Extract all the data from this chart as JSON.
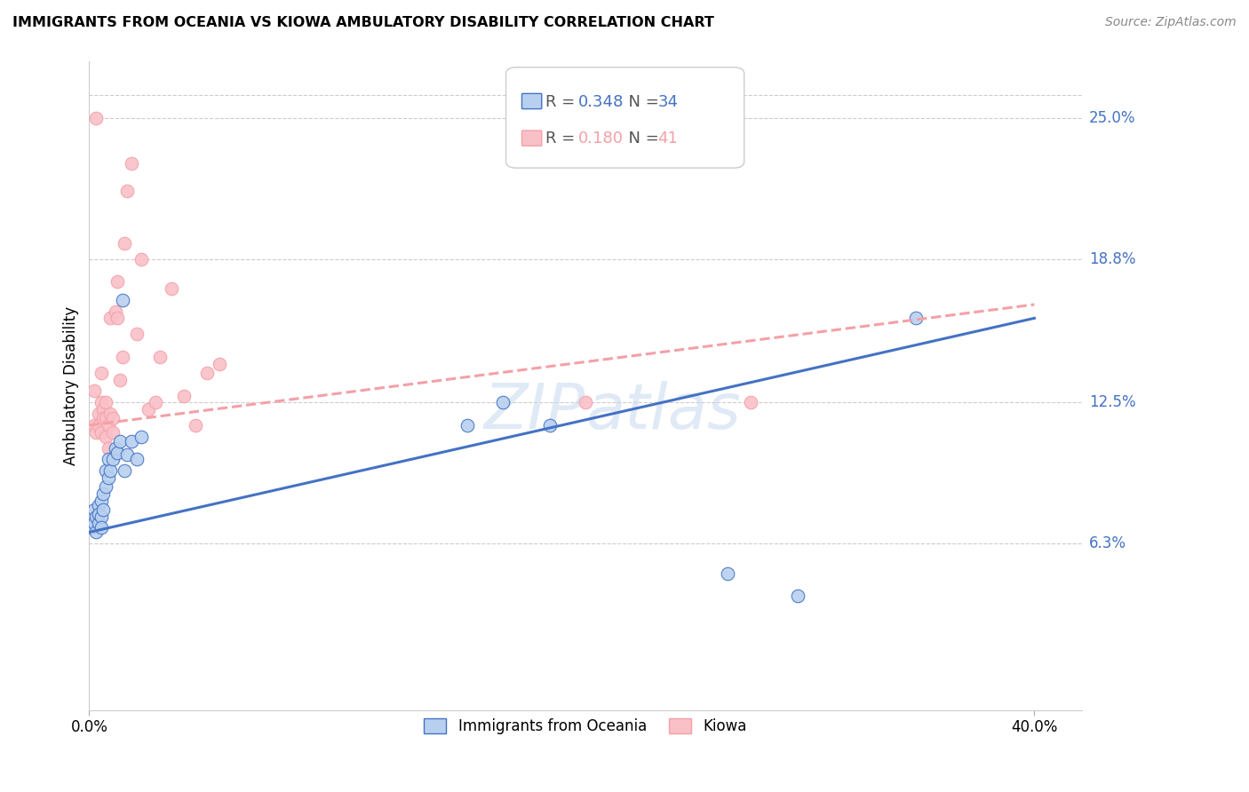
{
  "title": "IMMIGRANTS FROM OCEANIA VS KIOWA AMBULATORY DISABILITY CORRELATION CHART",
  "source": "Source: ZipAtlas.com",
  "ylabel": "Ambulatory Disability",
  "ytick_labels": [
    "6.3%",
    "12.5%",
    "18.8%",
    "25.0%"
  ],
  "ytick_values": [
    0.063,
    0.125,
    0.188,
    0.25
  ],
  "xlim": [
    0.0,
    0.42
  ],
  "ylim": [
    -0.01,
    0.275
  ],
  "plot_xlim": [
    0.0,
    0.4
  ],
  "legend_blue_r": "0.348",
  "legend_blue_n": "34",
  "legend_pink_r": "0.180",
  "legend_pink_n": "41",
  "blue_scatter_x": [
    0.001,
    0.002,
    0.002,
    0.003,
    0.003,
    0.004,
    0.004,
    0.004,
    0.005,
    0.005,
    0.005,
    0.006,
    0.006,
    0.007,
    0.007,
    0.008,
    0.008,
    0.009,
    0.01,
    0.011,
    0.012,
    0.013,
    0.014,
    0.015,
    0.016,
    0.018,
    0.02,
    0.022,
    0.16,
    0.175,
    0.195,
    0.27,
    0.3,
    0.35
  ],
  "blue_scatter_y": [
    0.07,
    0.072,
    0.078,
    0.075,
    0.068,
    0.072,
    0.08,
    0.076,
    0.075,
    0.082,
    0.07,
    0.078,
    0.085,
    0.088,
    0.095,
    0.092,
    0.1,
    0.095,
    0.1,
    0.105,
    0.103,
    0.108,
    0.17,
    0.095,
    0.102,
    0.108,
    0.1,
    0.11,
    0.115,
    0.125,
    0.115,
    0.05,
    0.04,
    0.162
  ],
  "pink_scatter_x": [
    0.001,
    0.002,
    0.002,
    0.003,
    0.003,
    0.004,
    0.004,
    0.005,
    0.005,
    0.005,
    0.006,
    0.006,
    0.007,
    0.007,
    0.007,
    0.008,
    0.008,
    0.009,
    0.009,
    0.01,
    0.01,
    0.011,
    0.012,
    0.012,
    0.013,
    0.014,
    0.015,
    0.016,
    0.018,
    0.02,
    0.022,
    0.025,
    0.028,
    0.03,
    0.035,
    0.04,
    0.045,
    0.05,
    0.055,
    0.21,
    0.28
  ],
  "pink_scatter_y": [
    0.072,
    0.115,
    0.13,
    0.112,
    0.25,
    0.115,
    0.12,
    0.125,
    0.138,
    0.112,
    0.122,
    0.118,
    0.11,
    0.118,
    0.125,
    0.105,
    0.115,
    0.12,
    0.162,
    0.112,
    0.118,
    0.165,
    0.162,
    0.178,
    0.135,
    0.145,
    0.195,
    0.218,
    0.23,
    0.155,
    0.188,
    0.122,
    0.125,
    0.145,
    0.175,
    0.128,
    0.115,
    0.138,
    0.142,
    0.125,
    0.125
  ],
  "blue_line_x0": 0.0,
  "blue_line_x1": 0.4,
  "blue_line_y0": 0.068,
  "blue_line_y1": 0.162,
  "pink_line_x0": 0.0,
  "pink_line_x1": 0.4,
  "pink_line_y0": 0.115,
  "pink_line_y1": 0.168,
  "blue_color": "#4472C4",
  "pink_color": "#F4A0A8",
  "blue_scatter_face": "#B8D0F0",
  "pink_scatter_face": "#FAC0C8",
  "bg_color": "#ffffff",
  "grid_color": "#cccccc",
  "right_label_color": "#4472C4",
  "watermark_color": "#C8D8F0"
}
